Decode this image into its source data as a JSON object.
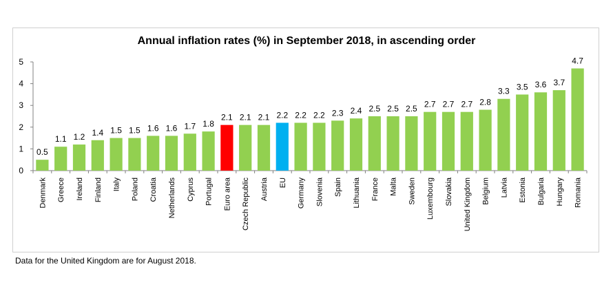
{
  "chart_data": {
    "type": "bar",
    "title": "Annual inflation rates (%) in September 2018, in ascending order",
    "xlabel": "",
    "ylabel": "",
    "ylim": [
      0,
      5
    ],
    "yticks": [
      0,
      1,
      2,
      3,
      4,
      5
    ],
    "grid": false,
    "categories": [
      "Denmark",
      "Greece",
      "Ireland",
      "Finland",
      "Italy",
      "Poland",
      "Croatia",
      "Netherlands",
      "Cyprus",
      "Portugal",
      "Euro area",
      "Czech Republic",
      "Austria",
      "EU",
      "Germany",
      "Slovenia",
      "Spain",
      "Lithuania",
      "France",
      "Malta",
      "Sweden",
      "Luxembourg",
      "Slovakia",
      "United Kingdom",
      "Belgium",
      "Latvia",
      "Estonia",
      "Bulgaria",
      "Hungary",
      "Romania"
    ],
    "values": [
      0.5,
      1.1,
      1.2,
      1.4,
      1.5,
      1.5,
      1.6,
      1.6,
      1.7,
      1.8,
      2.1,
      2.1,
      2.1,
      2.2,
      2.2,
      2.2,
      2.3,
      2.4,
      2.5,
      2.5,
      2.5,
      2.7,
      2.7,
      2.7,
      2.8,
      3.3,
      3.5,
      3.6,
      3.7,
      4.7
    ],
    "value_labels": [
      "0.5",
      "1.1",
      "1.2",
      "1.4",
      "1.5",
      "1.5",
      "1.6",
      "1.6",
      "1.7",
      "1.8",
      "2.1",
      "2.1",
      "2.1",
      "2.2",
      "2.2",
      "2.2",
      "2.3",
      "2.4",
      "2.5",
      "2.5",
      "2.5",
      "2.7",
      "2.7",
      "2.7",
      "2.8",
      "3.3",
      "3.5",
      "3.6",
      "3.7",
      "4.7"
    ],
    "colors": {
      "default": "#92d050",
      "Euro area": "#ff0000",
      "EU": "#00b0f0",
      "axis": "#808080"
    }
  },
  "footnote": "Data for the United Kingdom are for August 2018."
}
